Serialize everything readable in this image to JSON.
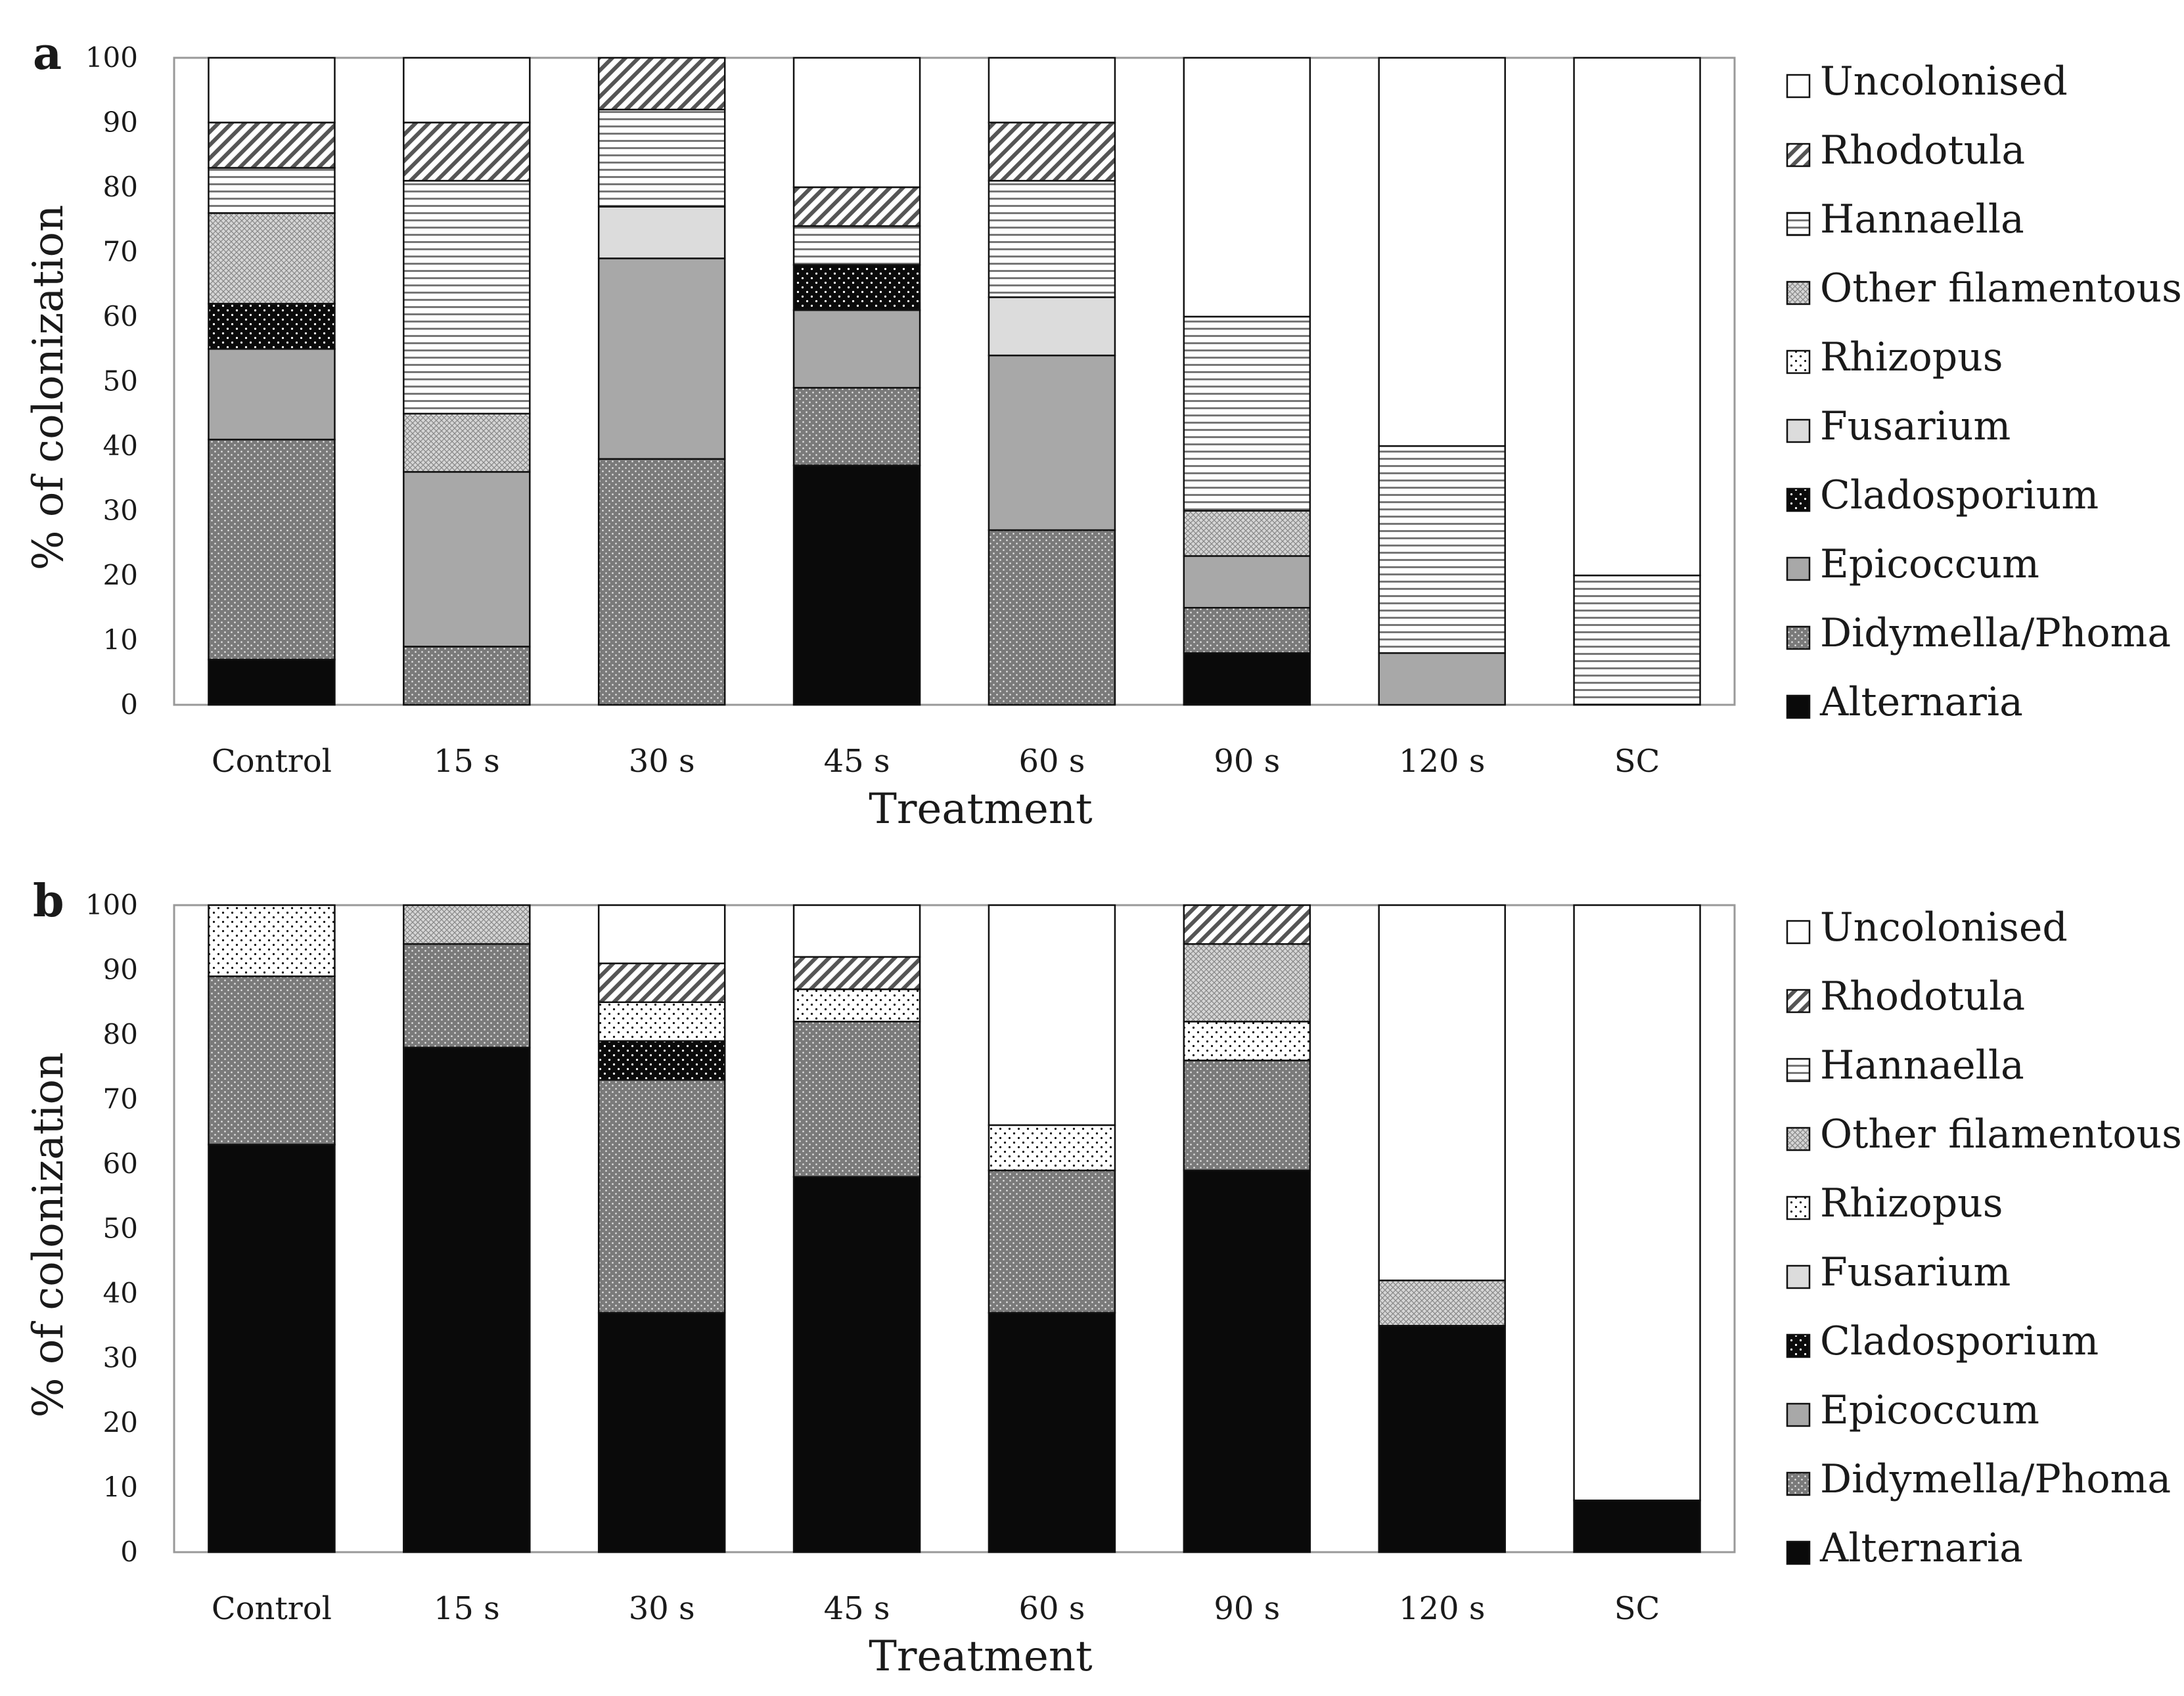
{
  "chart_data": [
    {
      "type": "bar",
      "stacked": true,
      "panel": "a",
      "xlabel": "Treatment",
      "ylabel": "% of colonization",
      "ylim": [
        0,
        100
      ],
      "yticks": [
        0,
        10,
        20,
        30,
        40,
        50,
        60,
        70,
        80,
        90,
        100
      ],
      "categories": [
        "Control",
        "15 s",
        "30 s",
        "45 s",
        "60 s",
        "90 s",
        "120 s",
        "SC"
      ],
      "legend": [
        "Uncolonised",
        "Rhodotula",
        "Hannaella",
        "Other filamentous",
        "Rhizopus",
        "Fusarium",
        "Cladosporium",
        "Epicoccum",
        "Didymella/Phoma",
        "Alternaria"
      ],
      "series": [
        {
          "name": "Alternaria",
          "values": [
            7,
            0,
            0,
            37,
            0,
            8,
            0,
            0
          ]
        },
        {
          "name": "Didymella/Phoma",
          "values": [
            34,
            9,
            38,
            12,
            27,
            7,
            0,
            0
          ]
        },
        {
          "name": "Epicoccum",
          "values": [
            14,
            27,
            31,
            12,
            27,
            8,
            8,
            0
          ]
        },
        {
          "name": "Cladosporium",
          "values": [
            7,
            0,
            0,
            7,
            0,
            0,
            0,
            0
          ]
        },
        {
          "name": "Rhizopus",
          "values": [
            0,
            0,
            0,
            0,
            0,
            0,
            0,
            0
          ]
        },
        {
          "name": "Fusarium",
          "values": [
            0,
            0,
            8,
            0,
            9,
            0,
            0,
            0
          ]
        },
        {
          "name": "Other filamentous",
          "values": [
            14,
            9,
            0,
            0,
            0,
            7,
            0,
            0
          ]
        },
        {
          "name": "Hannaella",
          "values": [
            7,
            36,
            15,
            6,
            18,
            30,
            32,
            20
          ]
        },
        {
          "name": "Rhodotula",
          "values": [
            7,
            9,
            8,
            6,
            9,
            0,
            0,
            0
          ]
        },
        {
          "name": "Uncolonised",
          "values": [
            10,
            10,
            0,
            20,
            10,
            40,
            60,
            80
          ]
        }
      ]
    },
    {
      "type": "bar",
      "stacked": true,
      "panel": "b",
      "xlabel": "Treatment",
      "ylabel": "% of colonization",
      "ylim": [
        0,
        100
      ],
      "yticks": [
        0,
        10,
        20,
        30,
        40,
        50,
        60,
        70,
        80,
        90,
        100
      ],
      "categories": [
        "Control",
        "15 s",
        "30 s",
        "45 s",
        "60 s",
        "90 s",
        "120 s",
        "SC"
      ],
      "legend": [
        "Uncolonised",
        "Rhodotula",
        "Hannaella",
        "Other filamentous",
        "Rhizopus",
        "Fusarium",
        "Cladosporium",
        "Epicoccum",
        "Didymella/Phoma",
        "Alternaria"
      ],
      "series": [
        {
          "name": "Alternaria",
          "values": [
            63,
            78,
            37,
            58,
            37,
            59,
            35,
            8
          ]
        },
        {
          "name": "Didymella/Phoma",
          "values": [
            26,
            16,
            36,
            24,
            22,
            17,
            0,
            0
          ]
        },
        {
          "name": "Epicoccum",
          "values": [
            0,
            0,
            0,
            0,
            0,
            0,
            0,
            0
          ]
        },
        {
          "name": "Cladosporium",
          "values": [
            0,
            0,
            6,
            0,
            0,
            0,
            0,
            0
          ]
        },
        {
          "name": "Rhizopus",
          "values": [
            11,
            0,
            6,
            5,
            7,
            6,
            0,
            0
          ]
        },
        {
          "name": "Fusarium",
          "values": [
            0,
            0,
            0,
            0,
            0,
            0,
            0,
            0
          ]
        },
        {
          "name": "Other filamentous",
          "values": [
            0,
            6,
            0,
            0,
            0,
            12,
            7,
            0
          ]
        },
        {
          "name": "Hannaella",
          "values": [
            0,
            0,
            0,
            0,
            0,
            0,
            0,
            0
          ]
        },
        {
          "name": "Rhodotula",
          "values": [
            0,
            0,
            6,
            5,
            0,
            6,
            0,
            0
          ]
        },
        {
          "name": "Uncolonised",
          "values": [
            0,
            0,
            9,
            8,
            34,
            0,
            58,
            92
          ]
        }
      ]
    }
  ]
}
